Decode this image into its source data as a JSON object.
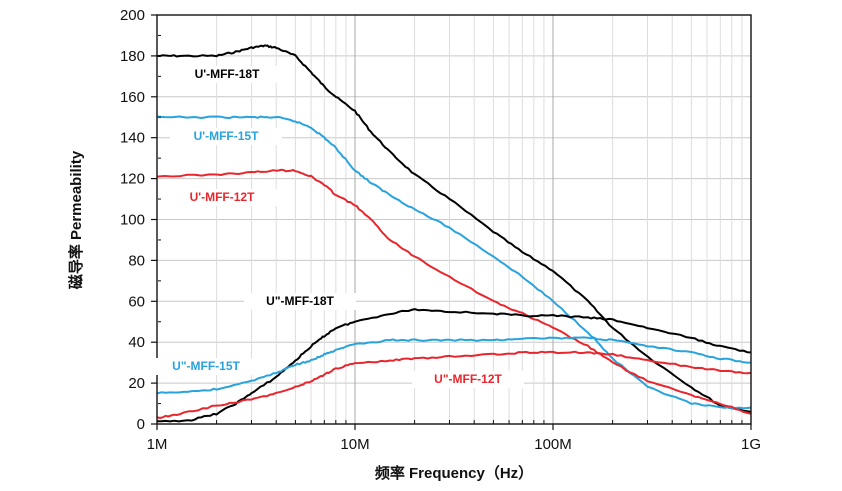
{
  "chart_data": {
    "type": "line",
    "xscale": "log",
    "xlabel": "频率 Frequency（Hz）",
    "ylabel": "磁导率 Permeability",
    "xlim": [
      1000000,
      1000000000
    ],
    "ylim": [
      0,
      200
    ],
    "xticks": [
      {
        "value": 1000000,
        "label": "1M"
      },
      {
        "value": 10000000,
        "label": "10M"
      },
      {
        "value": 100000000,
        "label": "100M"
      },
      {
        "value": 1000000000,
        "label": "1G"
      }
    ],
    "yticks": [
      0,
      20,
      40,
      60,
      80,
      100,
      120,
      140,
      160,
      180,
      200
    ],
    "grid": true,
    "series": [
      {
        "name": "U'-MFF-18T",
        "color": "#000000",
        "points": [
          [
            1000000,
            180
          ],
          [
            1300000,
            180
          ],
          [
            2000000,
            180
          ],
          [
            2500000,
            182
          ],
          [
            3000000,
            184
          ],
          [
            3500000,
            185
          ],
          [
            4000000,
            184
          ],
          [
            5000000,
            180
          ],
          [
            6000000,
            172
          ],
          [
            7000000,
            165
          ],
          [
            8000000,
            160
          ],
          [
            10000000,
            153
          ],
          [
            12000000,
            143
          ],
          [
            15000000,
            133
          ],
          [
            20000000,
            122
          ],
          [
            30000000,
            110
          ],
          [
            50000000,
            94
          ],
          [
            70000000,
            84
          ],
          [
            100000000,
            75
          ],
          [
            150000000,
            60
          ],
          [
            200000000,
            47
          ],
          [
            300000000,
            33
          ],
          [
            500000000,
            18
          ],
          [
            700000000,
            9
          ],
          [
            1000000000,
            6
          ]
        ]
      },
      {
        "name": "U'-MFF-15T",
        "color": "#29a3dd",
        "points": [
          [
            1000000,
            150
          ],
          [
            2000000,
            150
          ],
          [
            3000000,
            150
          ],
          [
            4000000,
            150
          ],
          [
            5000000,
            148
          ],
          [
            6000000,
            145
          ],
          [
            7000000,
            140
          ],
          [
            8000000,
            135
          ],
          [
            10000000,
            124
          ],
          [
            12000000,
            118
          ],
          [
            15000000,
            112
          ],
          [
            20000000,
            105
          ],
          [
            30000000,
            96
          ],
          [
            50000000,
            82
          ],
          [
            70000000,
            72
          ],
          [
            100000000,
            60
          ],
          [
            150000000,
            45
          ],
          [
            200000000,
            32
          ],
          [
            300000000,
            18
          ],
          [
            500000000,
            10
          ],
          [
            700000000,
            8
          ],
          [
            1000000000,
            8
          ]
        ]
      },
      {
        "name": "U'-MFF-12T",
        "color": "#e8262d",
        "points": [
          [
            1000000,
            121
          ],
          [
            2000000,
            122
          ],
          [
            3000000,
            123
          ],
          [
            4000000,
            124
          ],
          [
            5000000,
            124
          ],
          [
            6000000,
            121
          ],
          [
            7000000,
            117
          ],
          [
            8000000,
            112
          ],
          [
            10000000,
            107
          ],
          [
            12000000,
            100
          ],
          [
            15000000,
            90
          ],
          [
            20000000,
            82
          ],
          [
            30000000,
            72
          ],
          [
            50000000,
            60
          ],
          [
            70000000,
            54
          ],
          [
            100000000,
            47
          ],
          [
            150000000,
            38
          ],
          [
            200000000,
            30
          ],
          [
            300000000,
            21
          ],
          [
            500000000,
            14
          ],
          [
            700000000,
            10
          ],
          [
            1000000000,
            5
          ]
        ]
      },
      {
        "name": "U\"-MFF-18T",
        "color": "#000000",
        "points": [
          [
            1000000,
            1
          ],
          [
            1500000,
            2
          ],
          [
            2000000,
            5
          ],
          [
            2500000,
            10
          ],
          [
            3000000,
            15
          ],
          [
            4000000,
            23
          ],
          [
            5000000,
            31
          ],
          [
            6000000,
            38
          ],
          [
            7000000,
            43
          ],
          [
            8000000,
            47
          ],
          [
            10000000,
            50
          ],
          [
            15000000,
            54
          ],
          [
            20000000,
            56
          ],
          [
            30000000,
            55
          ],
          [
            50000000,
            54
          ],
          [
            70000000,
            53
          ],
          [
            100000000,
            53
          ],
          [
            150000000,
            52
          ],
          [
            200000000,
            51
          ],
          [
            300000000,
            47
          ],
          [
            500000000,
            42
          ],
          [
            700000000,
            38
          ],
          [
            1000000000,
            35
          ]
        ]
      },
      {
        "name": "U\"-MFF-15T",
        "color": "#29a3dd",
        "points": [
          [
            1000000,
            15
          ],
          [
            1500000,
            16
          ],
          [
            2000000,
            17
          ],
          [
            3000000,
            21
          ],
          [
            4000000,
            25
          ],
          [
            5000000,
            29
          ],
          [
            6000000,
            31
          ],
          [
            7000000,
            34
          ],
          [
            8000000,
            36
          ],
          [
            10000000,
            39
          ],
          [
            15000000,
            41
          ],
          [
            20000000,
            41
          ],
          [
            30000000,
            41
          ],
          [
            50000000,
            41
          ],
          [
            70000000,
            42
          ],
          [
            100000000,
            42
          ],
          [
            150000000,
            42
          ],
          [
            200000000,
            41
          ],
          [
            300000000,
            38
          ],
          [
            500000000,
            35
          ],
          [
            700000000,
            32
          ],
          [
            1000000000,
            30
          ]
        ]
      },
      {
        "name": "U\"-MFF-12T",
        "color": "#e8262d",
        "points": [
          [
            1000000,
            3
          ],
          [
            1300000,
            5
          ],
          [
            2000000,
            9
          ],
          [
            3000000,
            12
          ],
          [
            4000000,
            15
          ],
          [
            5000000,
            18
          ],
          [
            6000000,
            21
          ],
          [
            7000000,
            24
          ],
          [
            8000000,
            27
          ],
          [
            10000000,
            30
          ],
          [
            15000000,
            31
          ],
          [
            20000000,
            32
          ],
          [
            30000000,
            33
          ],
          [
            50000000,
            34
          ],
          [
            70000000,
            35
          ],
          [
            100000000,
            35
          ],
          [
            150000000,
            35
          ],
          [
            200000000,
            34
          ],
          [
            300000000,
            31
          ],
          [
            500000000,
            28
          ],
          [
            700000000,
            26
          ],
          [
            1000000000,
            25
          ]
        ]
      }
    ]
  }
}
